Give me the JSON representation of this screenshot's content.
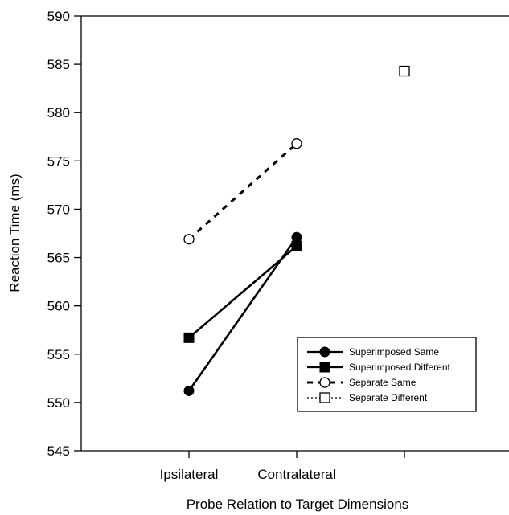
{
  "chart_data": {
    "type": "line",
    "title": "",
    "xlabel": "Probe Relation to Target Dimensions",
    "ylabel": "Reaction Time (ms)",
    "categories": [
      "Ipsilateral",
      "Contralateral",
      ""
    ],
    "ylim": [
      545,
      590
    ],
    "yticks": [
      545,
      550,
      555,
      560,
      565,
      570,
      575,
      580,
      585,
      590
    ],
    "grid": false,
    "legend_position": "bottom-right",
    "series": [
      {
        "name": "Superimposed Same",
        "marker": "filled-circle",
        "line": "solid",
        "values": [
          551.2,
          567.1,
          null
        ]
      },
      {
        "name": "Superimposed Different",
        "marker": "filled-square",
        "line": "solid",
        "values": [
          556.7,
          566.2,
          null
        ]
      },
      {
        "name": "Separate Same",
        "marker": "open-circle",
        "line": "dashed",
        "values": [
          566.9,
          576.8,
          null
        ]
      },
      {
        "name": "Separate Different",
        "marker": "open-square",
        "line": "dotted",
        "values": [
          null,
          null,
          584.3
        ]
      }
    ]
  }
}
